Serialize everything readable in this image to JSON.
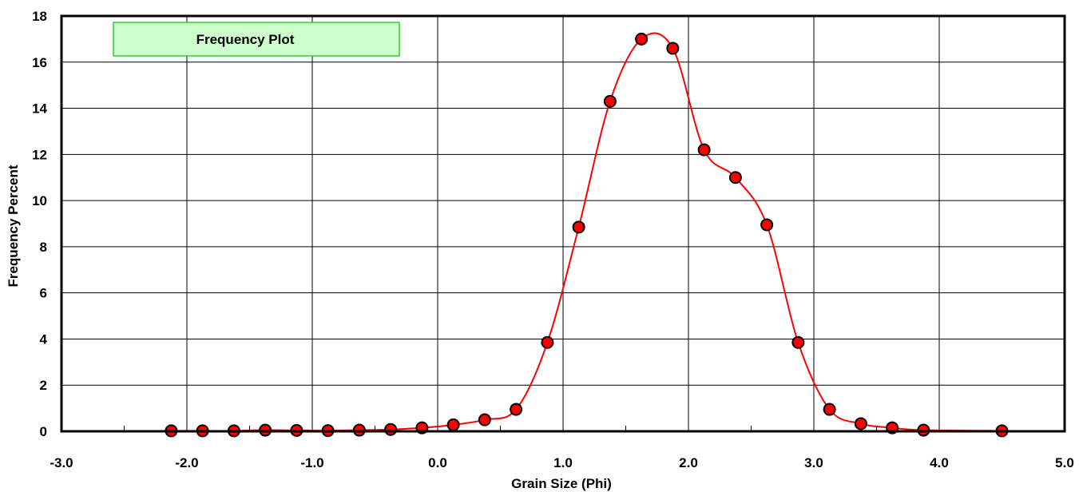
{
  "chart_data": {
    "type": "line",
    "title": "Frequency Plot",
    "xlabel": "Grain Size (Phi)",
    "ylabel": "Frequency Percent",
    "xlim": [
      -3.0,
      5.0
    ],
    "ylim": [
      0,
      18
    ],
    "x_ticks": [
      "-3.0",
      "-2.0",
      "-1.0",
      "0.0",
      "1.0",
      "2.0",
      "3.0",
      "4.0",
      "5.0"
    ],
    "y_ticks": [
      "0",
      "2",
      "4",
      "6",
      "8",
      "10",
      "12",
      "14",
      "16",
      "18"
    ],
    "grid": true,
    "series": [
      {
        "x": [
          -2.125,
          -1.875,
          -1.625,
          -1.375,
          -1.125,
          -0.875,
          -0.625,
          -0.375,
          -0.125,
          0.125,
          0.375,
          0.625,
          0.875,
          1.125,
          1.375,
          1.625,
          1.875,
          2.125,
          2.375,
          2.625,
          2.875,
          3.125,
          3.375,
          3.625,
          3.875,
          4.5
        ],
        "y": [
          0.02,
          0.02,
          0.02,
          0.05,
          0.04,
          0.03,
          0.05,
          0.08,
          0.15,
          0.28,
          0.5,
          0.95,
          3.85,
          8.85,
          14.3,
          17.0,
          16.6,
          12.2,
          11.0,
          8.95,
          3.85,
          0.95,
          0.33,
          0.15,
          0.05,
          0.02
        ],
        "line_color": "#ff0000",
        "marker_fill": "#ff0000",
        "marker_edge": "#000000"
      }
    ],
    "colors": {
      "legend_fill": "#ccffcc",
      "legend_border": "#33cc33"
    }
  }
}
